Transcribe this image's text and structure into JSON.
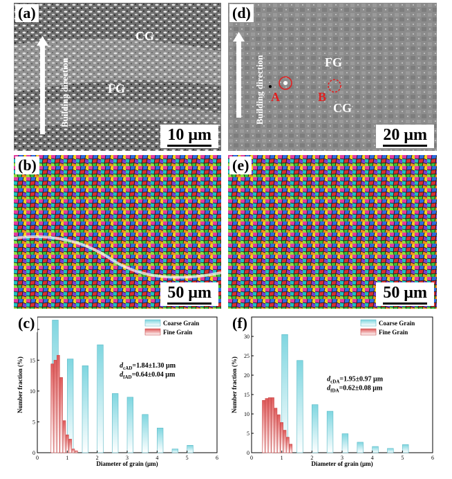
{
  "panels": {
    "a": {
      "label": "(a)",
      "scale": "10 μm",
      "direction": "Building direction",
      "regions": [
        "CG",
        "FG"
      ]
    },
    "b": {
      "label": "(b)",
      "scale": "50 μm"
    },
    "c": {
      "label": "(c)"
    },
    "d": {
      "label": "(d)",
      "scale": "20 μm",
      "direction": "Building direction",
      "regions": [
        "FG",
        "CG"
      ],
      "markers": [
        "A",
        "B"
      ]
    },
    "e": {
      "label": "(e)",
      "scale": "50 μm"
    },
    "f": {
      "label": "(f)"
    }
  },
  "colors": {
    "coarse": "#7fd6e0",
    "fine": "#e57373",
    "marker": "#e02020"
  },
  "chart_data": [
    {
      "type": "bar",
      "panel": "(c)",
      "xlabel": "Diameter of grain (μm)",
      "ylabel": "Number fraction (%)",
      "xlim": [
        0,
        6
      ],
      "ylim": [
        0,
        22
      ],
      "xticks": [
        0,
        1,
        2,
        3,
        4,
        5,
        6
      ],
      "yticks": [
        0,
        5,
        10,
        15,
        20
      ],
      "legend": [
        "Coarse Grain",
        "Fine Grain"
      ],
      "legend_position": "top-right",
      "annotation": [
        "d_cAD=1.84±1.30 μm",
        "d_fAD=0.64±0.04 μm"
      ],
      "series": [
        {
          "name": "Coarse Grain",
          "x": [
            0.6,
            1.1,
            1.6,
            2.1,
            2.6,
            3.1,
            3.6,
            4.1,
            4.6,
            5.1
          ],
          "values": [
            21.5,
            15.2,
            14.1,
            17.5,
            9.6,
            9.0,
            6.2,
            4.0,
            0.6,
            1.2
          ]
        },
        {
          "name": "Fine Grain",
          "x": [
            0.5,
            0.6,
            0.7,
            0.8,
            0.9,
            1.0,
            1.1,
            1.2,
            1.3
          ],
          "values": [
            14.4,
            15.0,
            15.8,
            12.2,
            5.2,
            2.9,
            2.2,
            0.6,
            0.3
          ]
        }
      ]
    },
    {
      "type": "bar",
      "panel": "(f)",
      "xlabel": "Diameter of grain (μm)",
      "ylabel": "Number fraction (%)",
      "xlim": [
        0,
        6
      ],
      "ylim": [
        0,
        35
      ],
      "xticks": [
        0,
        1,
        2,
        3,
        4,
        5,
        6
      ],
      "yticks": [
        0,
        5,
        10,
        15,
        20,
        25,
        30,
        35
      ],
      "legend": [
        "Coarse Grain",
        "Fine Grain"
      ],
      "legend_position": "top-right",
      "annotation": [
        "d_cDA=1.95±0.97 μm",
        "d_fDA=0.62±0.08 μm"
      ],
      "series": [
        {
          "name": "Coarse Grain",
          "x": [
            0.6,
            1.1,
            1.6,
            2.1,
            2.6,
            3.1,
            3.6,
            4.1,
            4.6,
            5.1
          ],
          "values": [
            13.0,
            30.5,
            23.8,
            12.4,
            10.7,
            4.9,
            2.7,
            1.6,
            1.1,
            2.1
          ]
        },
        {
          "name": "Fine Grain",
          "x": [
            0.4,
            0.5,
            0.6,
            0.7,
            0.8,
            0.9,
            1.0,
            1.1,
            1.2,
            1.3
          ],
          "values": [
            13.5,
            14.0,
            14.2,
            14.2,
            11.5,
            9.8,
            7.8,
            5.8,
            4.0,
            2.2
          ]
        }
      ]
    }
  ]
}
